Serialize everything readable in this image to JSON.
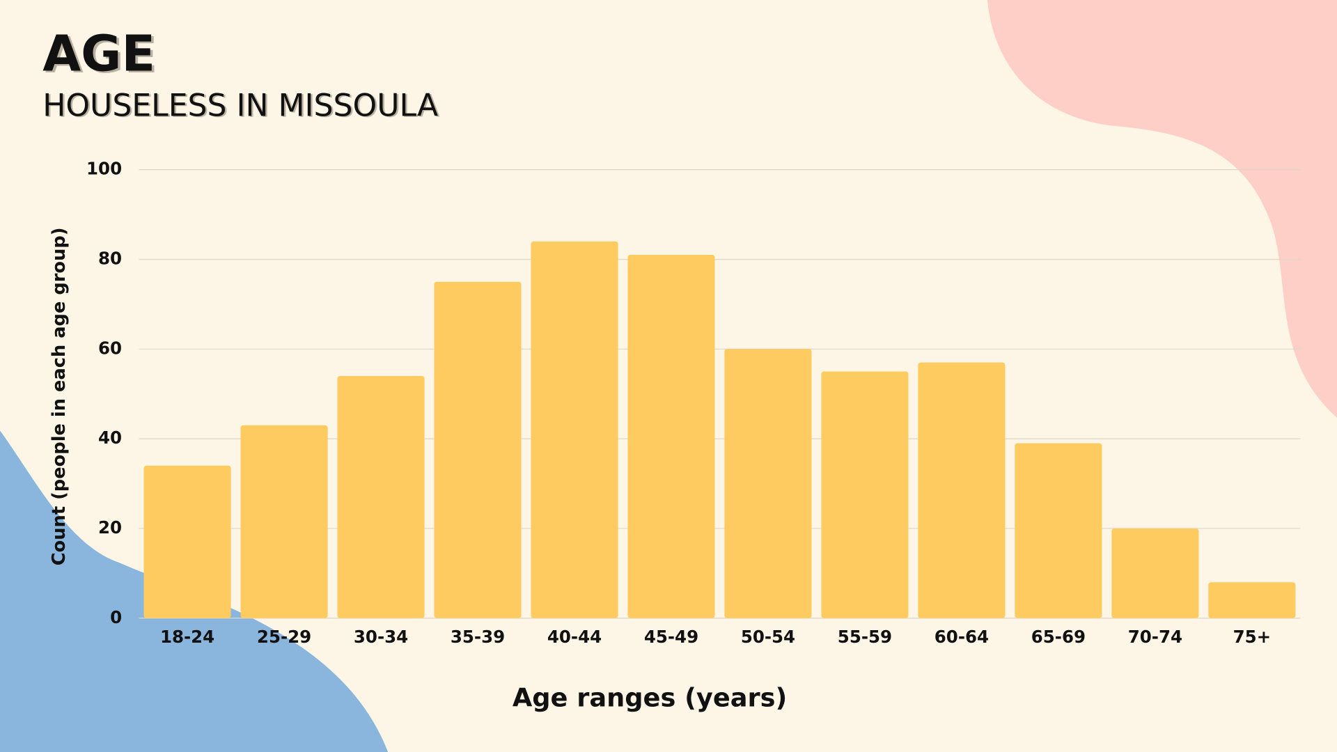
{
  "chart_data": {
    "type": "bar",
    "title": "AGE",
    "subtitle": "HOUSELESS IN MISSOULA",
    "x_label": "Age ranges (years)",
    "y_label": "Count (people in each age group)",
    "categories": [
      "18-24",
      "25-29",
      "30-34",
      "35-39",
      "40-44",
      "45-49",
      "50-54",
      "55-59",
      "60-64",
      "65-69",
      "70-74",
      "75+"
    ],
    "values": [
      34,
      43,
      54,
      75,
      84,
      81,
      60,
      55,
      57,
      39,
      20,
      8
    ],
    "color": "#fdcb5f",
    "ylim": [
      0,
      100
    ],
    "yticks": [
      0,
      20,
      40,
      60,
      80,
      100
    ],
    "grid": true
  }
}
